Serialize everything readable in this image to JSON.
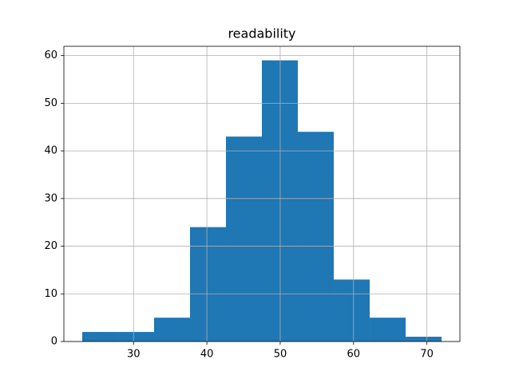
{
  "chart_data": {
    "type": "histogram",
    "title": "readability",
    "bins": [
      23,
      27.9,
      32.8,
      37.7,
      42.6,
      47.5,
      52.4,
      57.3,
      62.2,
      67.1,
      72
    ],
    "counts": [
      2,
      2,
      5,
      24,
      43,
      59,
      44,
      13,
      5,
      1
    ],
    "color": "#1f77b4",
    "xlim": [
      20.5,
      74.5
    ],
    "xticks": [
      30,
      40,
      50,
      60,
      70
    ],
    "ylim": [
      0,
      61.95
    ],
    "yticks": [
      0,
      10,
      20,
      30,
      40,
      50,
      60
    ],
    "grid": true
  }
}
